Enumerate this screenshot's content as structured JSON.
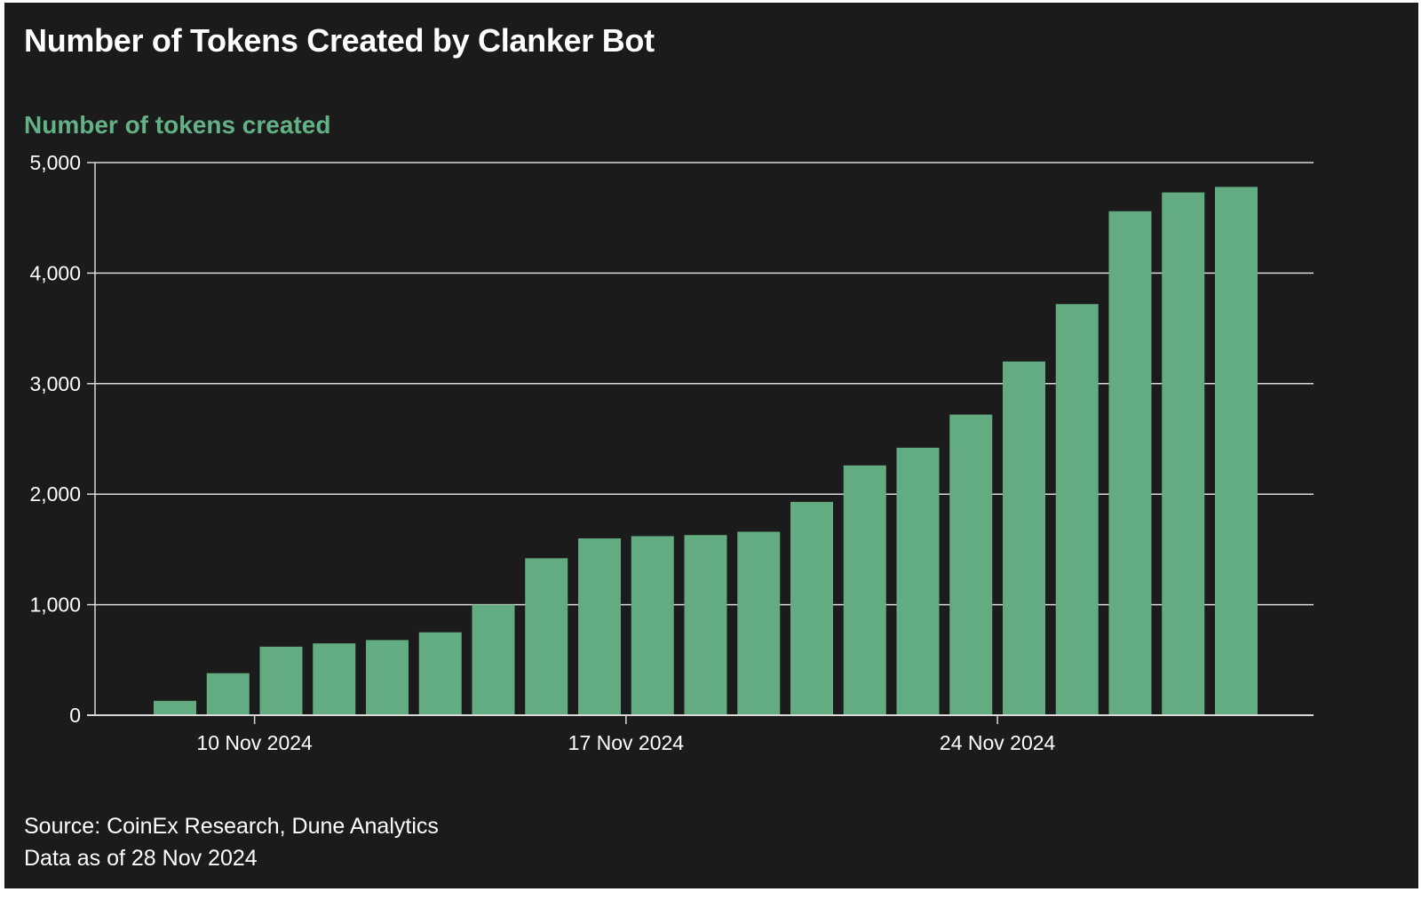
{
  "title": "Number of Tokens Created by Clanker Bot",
  "footer": {
    "source": "Source: CoinEx Research, Dune Analytics",
    "data_as_of": "Data as of 28 Nov 2024"
  },
  "colors": {
    "background": "#1b1b1b",
    "bar": "#63ab80",
    "accent_text": "#63b286",
    "gridline": "#d9d9d9",
    "text": "#ffffff"
  },
  "chart_data": {
    "type": "bar",
    "title": "Number of Tokens Created by Clanker Bot",
    "ylabel": "Number of tokens created",
    "xlabel": "",
    "ylim": [
      0,
      5000
    ],
    "yticks": [
      0,
      1000,
      2000,
      3000,
      4000,
      5000
    ],
    "ytick_labels": [
      "0",
      "1,000",
      "2,000",
      "3,000",
      "4,000",
      "5,000"
    ],
    "xtick_labels": [
      {
        "label": "10 Nov 2024",
        "category": "2024-11-10"
      },
      {
        "label": "17 Nov 2024",
        "category": "2024-11-17"
      },
      {
        "label": "24 Nov 2024",
        "category": "2024-11-24"
      }
    ],
    "grid": true,
    "categories": [
      "2024-11-08",
      "2024-11-09",
      "2024-11-10",
      "2024-11-11",
      "2024-11-12",
      "2024-11-13",
      "2024-11-14",
      "2024-11-15",
      "2024-11-16",
      "2024-11-17",
      "2024-11-18",
      "2024-11-19",
      "2024-11-20",
      "2024-11-21",
      "2024-11-22",
      "2024-11-23",
      "2024-11-24",
      "2024-11-25",
      "2024-11-26",
      "2024-11-27",
      "2024-11-28"
    ],
    "values": [
      130,
      380,
      620,
      650,
      680,
      750,
      1000,
      1420,
      1600,
      1620,
      1630,
      1660,
      1930,
      2260,
      2420,
      2720,
      3200,
      3720,
      4560,
      4730,
      4780
    ]
  }
}
